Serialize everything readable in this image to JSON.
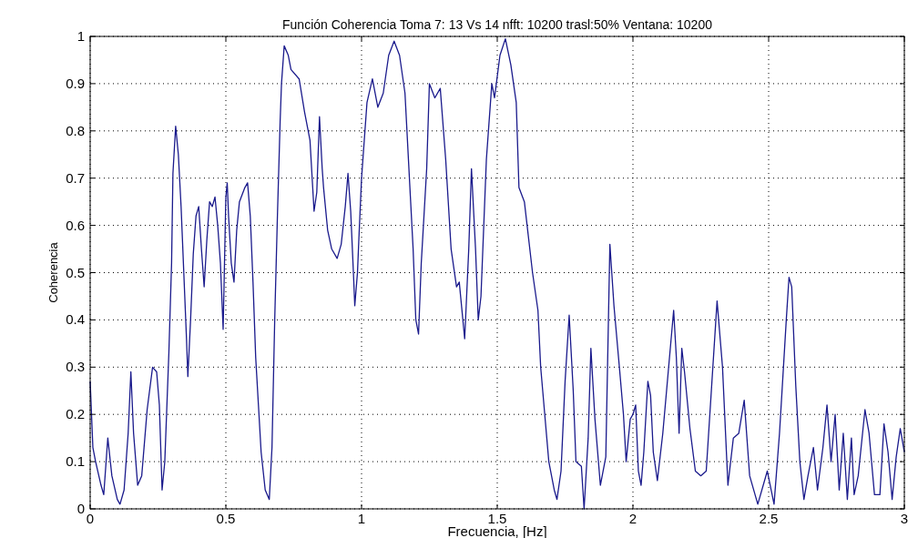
{
  "chart_data": {
    "type": "line",
    "title": "Función Coherencia Toma 7: 13 Vs 14 nfft: 10200 trasl:50% Ventana: 10200",
    "xlabel": "Frecuencia, [Hz]",
    "ylabel": "Coherencia",
    "xlim": [
      0,
      3
    ],
    "xticks": [
      0,
      0.5,
      1,
      1.5,
      2,
      2.5,
      3
    ],
    "ylim": [
      0,
      1
    ],
    "yticks": [
      0,
      0.1,
      0.2,
      0.3,
      0.4,
      0.5,
      0.6,
      0.7,
      0.8,
      0.9,
      1
    ],
    "grid": true,
    "series": [
      {
        "color": "#1a1a8c",
        "x": [
          0,
          0.01,
          0.02,
          0.04,
          0.05,
          0.065,
          0.08,
          0.1,
          0.11,
          0.125,
          0.14,
          0.15,
          0.16,
          0.175,
          0.19,
          0.21,
          0.23,
          0.245,
          0.255,
          0.265,
          0.275,
          0.29,
          0.3,
          0.305,
          0.315,
          0.325,
          0.335,
          0.345,
          0.355,
          0.36,
          0.37,
          0.38,
          0.39,
          0.4,
          0.41,
          0.42,
          0.43,
          0.44,
          0.45,
          0.46,
          0.47,
          0.48,
          0.49,
          0.5,
          0.505,
          0.51,
          0.52,
          0.53,
          0.54,
          0.55,
          0.57,
          0.58,
          0.59,
          0.6,
          0.61,
          0.62,
          0.63,
          0.645,
          0.66,
          0.67,
          0.68,
          0.69,
          0.7,
          0.705,
          0.715,
          0.73,
          0.74,
          0.77,
          0.79,
          0.81,
          0.82,
          0.825,
          0.835,
          0.845,
          0.855,
          0.86,
          0.875,
          0.89,
          0.91,
          0.925,
          0.94,
          0.95,
          0.96,
          0.97,
          0.975,
          0.985,
          0.99,
          1.0,
          1.01,
          1.02,
          1.04,
          1.06,
          1.08,
          1.1,
          1.12,
          1.14,
          1.16,
          1.18,
          1.19,
          1.2,
          1.21,
          1.22,
          1.24,
          1.25,
          1.27,
          1.29,
          1.31,
          1.33,
          1.35,
          1.36,
          1.38,
          1.395,
          1.405,
          1.42,
          1.43,
          1.44,
          1.46,
          1.48,
          1.49,
          1.51,
          1.53,
          1.55,
          1.57,
          1.58,
          1.6,
          1.63,
          1.65,
          1.66,
          1.675,
          1.69,
          1.71,
          1.72,
          1.735,
          1.75,
          1.765,
          1.78,
          1.79,
          1.81,
          1.82,
          1.835,
          1.845,
          1.86,
          1.88,
          1.9,
          1.915,
          1.93,
          1.95,
          1.965,
          1.975,
          1.99,
          2.0,
          2.01,
          2.02,
          2.03,
          2.04,
          2.055,
          2.065,
          2.075,
          2.09,
          2.11,
          2.13,
          2.15,
          2.16,
          2.17,
          2.18,
          2.19,
          2.21,
          2.23,
          2.25,
          2.27,
          2.29,
          2.31,
          2.33,
          2.35,
          2.37,
          2.39,
          2.41,
          2.43,
          2.46,
          2.495,
          2.52,
          2.54,
          2.565,
          2.575,
          2.585,
          2.6,
          2.615,
          2.63,
          2.645,
          2.665,
          2.68,
          2.7,
          2.715,
          2.73,
          2.745,
          2.76,
          2.775,
          2.79,
          2.805,
          2.815,
          2.83,
          2.855,
          2.87,
          2.89,
          2.91,
          2.925,
          2.94,
          2.955,
          2.97,
          2.985,
          3.0
        ],
        "values": [
          0.27,
          0.13,
          0.1,
          0.05,
          0.03,
          0.15,
          0.07,
          0.02,
          0.01,
          0.04,
          0.16,
          0.29,
          0.16,
          0.05,
          0.07,
          0.21,
          0.3,
          0.29,
          0.22,
          0.04,
          0.1,
          0.33,
          0.52,
          0.71,
          0.81,
          0.75,
          0.64,
          0.5,
          0.36,
          0.28,
          0.4,
          0.54,
          0.62,
          0.64,
          0.55,
          0.47,
          0.57,
          0.65,
          0.64,
          0.66,
          0.6,
          0.52,
          0.38,
          0.66,
          0.69,
          0.62,
          0.52,
          0.48,
          0.59,
          0.65,
          0.68,
          0.69,
          0.62,
          0.48,
          0.32,
          0.22,
          0.12,
          0.04,
          0.02,
          0.13,
          0.4,
          0.62,
          0.82,
          0.9,
          0.98,
          0.96,
          0.93,
          0.91,
          0.84,
          0.78,
          0.68,
          0.63,
          0.67,
          0.83,
          0.72,
          0.68,
          0.59,
          0.55,
          0.53,
          0.56,
          0.64,
          0.71,
          0.63,
          0.5,
          0.43,
          0.5,
          0.57,
          0.7,
          0.78,
          0.86,
          0.91,
          0.85,
          0.88,
          0.96,
          0.99,
          0.96,
          0.88,
          0.66,
          0.55,
          0.4,
          0.37,
          0.52,
          0.72,
          0.9,
          0.87,
          0.89,
          0.74,
          0.55,
          0.47,
          0.48,
          0.36,
          0.55,
          0.72,
          0.55,
          0.4,
          0.45,
          0.74,
          0.9,
          0.87,
          0.96,
          0.995,
          0.94,
          0.86,
          0.68,
          0.65,
          0.5,
          0.42,
          0.3,
          0.2,
          0.1,
          0.04,
          0.02,
          0.08,
          0.27,
          0.41,
          0.25,
          0.1,
          0.09,
          0.0,
          0.15,
          0.34,
          0.19,
          0.05,
          0.11,
          0.56,
          0.43,
          0.3,
          0.2,
          0.1,
          0.19,
          0.2,
          0.22,
          0.08,
          0.05,
          0.12,
          0.27,
          0.24,
          0.12,
          0.06,
          0.16,
          0.29,
          0.42,
          0.32,
          0.16,
          0.34,
          0.29,
          0.17,
          0.08,
          0.07,
          0.08,
          0.26,
          0.44,
          0.3,
          0.05,
          0.15,
          0.16,
          0.23,
          0.07,
          0.01,
          0.08,
          0.01,
          0.16,
          0.4,
          0.49,
          0.47,
          0.26,
          0.1,
          0.02,
          0.07,
          0.13,
          0.04,
          0.13,
          0.22,
          0.1,
          0.2,
          0.04,
          0.16,
          0.02,
          0.15,
          0.03,
          0.07,
          0.21,
          0.16,
          0.03,
          0.03,
          0.18,
          0.12,
          0.02,
          0.11,
          0.17,
          0.12
        ]
      }
    ]
  }
}
